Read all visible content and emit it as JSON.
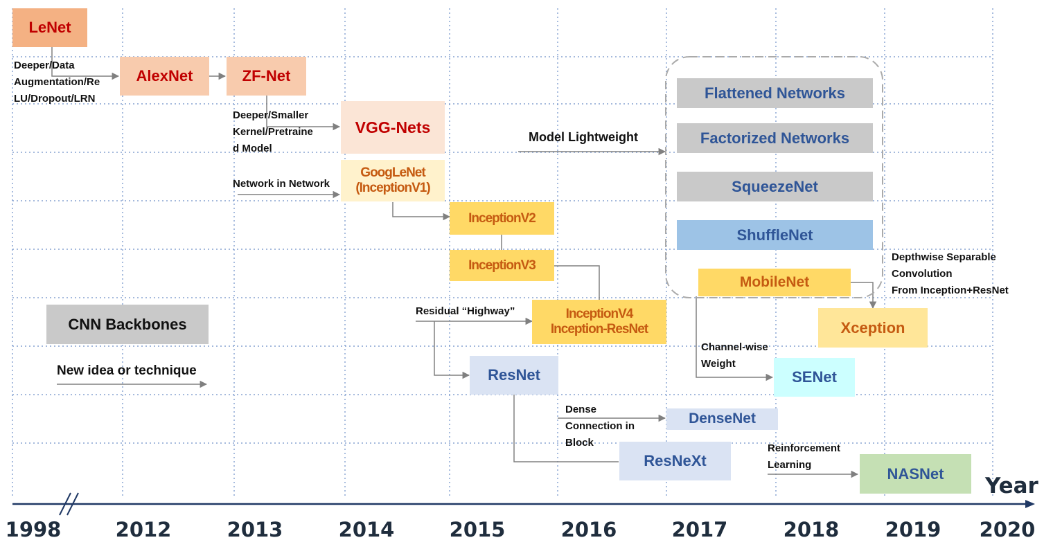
{
  "axis": {
    "title": "Year",
    "years": [
      "1998",
      "2012",
      "2013",
      "2014",
      "2015",
      "2016",
      "2017",
      "2018",
      "2019",
      "2020"
    ]
  },
  "networks": {
    "lenet": "LeNet",
    "alexnet": "AlexNet",
    "zfnet": "ZF-Net",
    "vgg": "VGG-Nets",
    "googlenet": [
      "GoogLeNet",
      "(InceptionV1)"
    ],
    "inceptionv2": "InceptionV2",
    "inceptionv3": "InceptionV3",
    "inceptionv4": [
      "InceptionV4",
      "Inception-ResNet"
    ],
    "resnet": "ResNet",
    "densenet": "DenseNet",
    "resnext": "ResNeXt",
    "flattened": "Flattened Networks",
    "factorized": "Factorized Networks",
    "squeezenet": "SqueezeNet",
    "shufflenet": "ShuffleNet",
    "mobilenet": "MobileNet",
    "xception": "Xception",
    "senet": "SENet",
    "nasnet": "NASNet"
  },
  "ideas": {
    "alexnet_idea": [
      "Deeper/Data",
      "Augmentation/Re",
      "LU/Dropout/LRN"
    ],
    "vgg_idea": [
      "Deeper/Smaller",
      "Kernel/Pretraine",
      "d Model"
    ],
    "nin": "Network in Network",
    "residual": "Residual “Highway”",
    "lightweight": "Model Lightweight",
    "dense": [
      "Dense",
      "Connection in",
      "Block"
    ],
    "channel": [
      "Channel-wise",
      "Weight"
    ],
    "depthwise": [
      "Depthwise Separable",
      "Convolution",
      "From Inception+ResNet"
    ],
    "rl": [
      "Reinforcement",
      "Learning"
    ]
  },
  "legend": {
    "backbone": "CNN Backbones",
    "idea": "New idea or technique"
  },
  "colors": {
    "lenet": "#f4b183",
    "alexnet": "#f8cbad",
    "vgg": "#fbe5d6",
    "googlenet": "#fff2cc",
    "inception": "#ffd966",
    "resnet_family": "#dae3f3",
    "gray": "#c9c9c9",
    "shufflenet": "#9dc3e6",
    "senet": "#ccffff",
    "nasnet": "#c5e0b4",
    "xception": "#ffe699"
  }
}
